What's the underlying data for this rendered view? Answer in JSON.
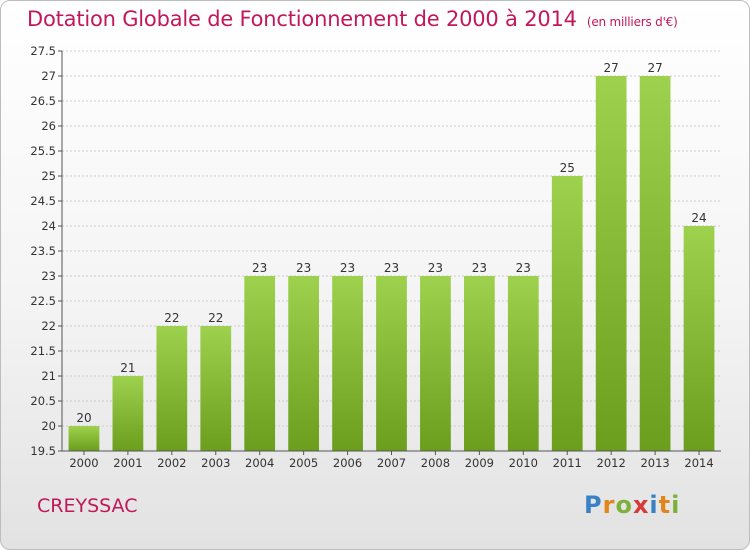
{
  "header": {
    "title": "Dotation Globale de Fonctionnement de 2000 à 2014",
    "subtitle": "(en milliers d'€)"
  },
  "footer": {
    "place": "CREYSSAC",
    "logo": [
      "P",
      "r",
      "o",
      "x",
      "i",
      "t",
      "i"
    ]
  },
  "colors": {
    "title": "#c2185b",
    "bar_light": "#9ed14e",
    "bar_dark": "#6a9e1c",
    "grid": "#cccccc"
  },
  "chart_data": {
    "type": "bar",
    "title": "Dotation Globale de Fonctionnement de 2000 à 2014",
    "subtitle": "(en milliers d'€)",
    "categories": [
      "2000",
      "2001",
      "2002",
      "2003",
      "2004",
      "2005",
      "2006",
      "2007",
      "2008",
      "2009",
      "2010",
      "2011",
      "2012",
      "2013",
      "2014"
    ],
    "values": [
      20,
      21,
      22,
      22,
      23,
      23,
      23,
      23,
      23,
      23,
      23,
      25,
      27,
      27,
      24
    ],
    "ylim": [
      19.5,
      27.5
    ],
    "yticks": [
      "19.5",
      "20",
      "20.5",
      "21",
      "21.5",
      "22",
      "22.5",
      "23",
      "23.5",
      "24",
      "24.5",
      "25",
      "25.5",
      "26",
      "26.5",
      "27",
      "27.5"
    ],
    "grid": true,
    "data_labels": true,
    "xlabel": "",
    "ylabel": ""
  }
}
